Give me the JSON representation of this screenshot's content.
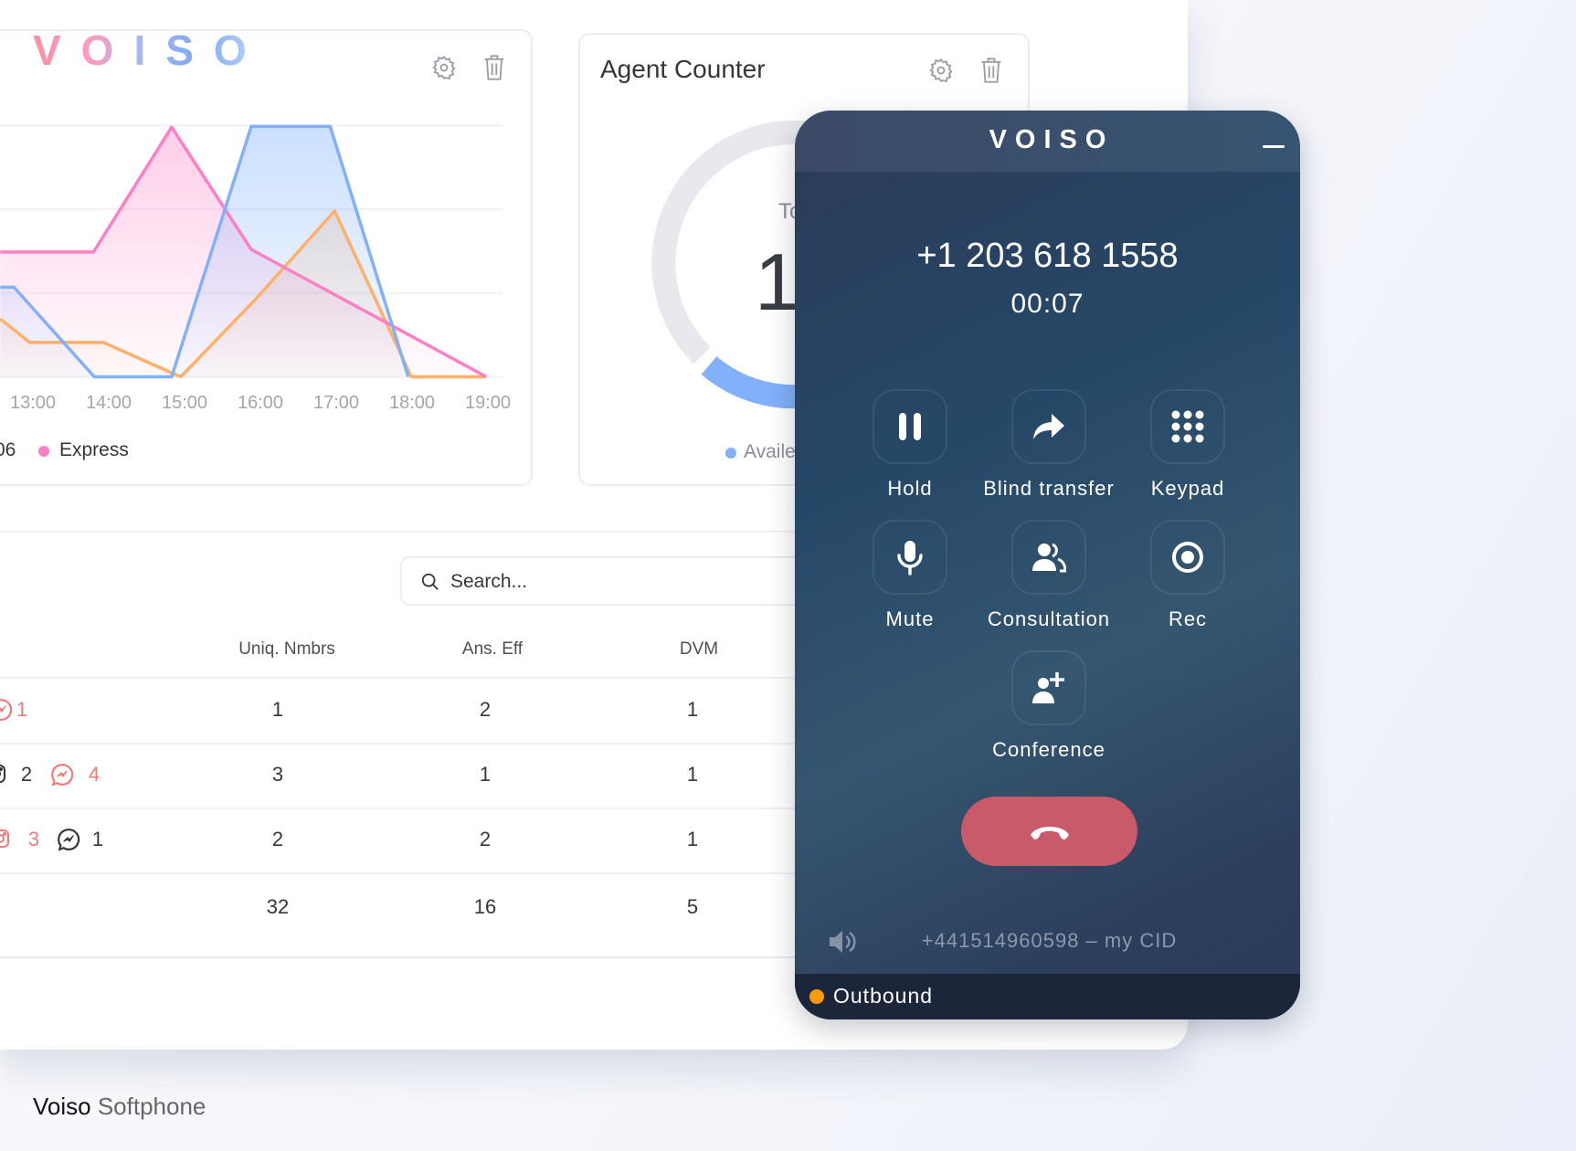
{
  "dashboard": {
    "logo": "VOISO",
    "chart_card": {
      "legend": [
        {
          "label": "06",
          "color": null
        },
        {
          "label": "Express",
          "color": "#ff7fc4"
        }
      ]
    },
    "agent_counter": {
      "title": "Agent Counter",
      "total_label": "To",
      "total_value": "1",
      "legend_label": "Availe",
      "legend_color": "#82b0fa"
    },
    "search": {
      "placeholder": "Search..."
    },
    "table": {
      "columns": [
        "Uniq. Nmbrs",
        "Ans. Eff",
        "DVM"
      ],
      "rows": [
        {
          "channels": [
            {
              "icon": "messenger-icon",
              "value": "1",
              "color": "red"
            }
          ],
          "values": [
            "1",
            "2",
            "1"
          ]
        },
        {
          "channels": [
            {
              "icon": "instagram-icon",
              "value": "2",
              "color": "dark"
            },
            {
              "icon": "messenger-icon",
              "value": "4",
              "color": "red"
            }
          ],
          "values": [
            "3",
            "1",
            "1"
          ]
        },
        {
          "channels": [
            {
              "icon": "instagram-icon",
              "value": "3",
              "color": "red"
            },
            {
              "icon": "messenger-icon",
              "value": "1",
              "color": "dark"
            }
          ],
          "values": [
            "2",
            "2",
            "1"
          ]
        }
      ],
      "totals": [
        "32",
        "16",
        "5"
      ]
    }
  },
  "chart_data": {
    "type": "area",
    "x_ticks": [
      "13:00",
      "14:00",
      "15:00",
      "16:00",
      "17:00",
      "18:00",
      "19:00"
    ],
    "ylim": [
      0,
      3
    ],
    "grid": true,
    "legend_placement": "bottom-left",
    "series": [
      {
        "name": "Express",
        "color": "#ff7fc4",
        "points": [
          [
            12.57,
            1.49
          ],
          [
            13.8,
            1.49
          ],
          [
            14.83,
            2.98
          ],
          [
            15.88,
            1.52
          ],
          [
            18.98,
            0
          ]
        ]
      },
      {
        "color": "#82b0fa",
        "points": [
          [
            12.57,
            1.07
          ],
          [
            12.75,
            1.07
          ],
          [
            13.81,
            0
          ],
          [
            14.83,
            0
          ],
          [
            15.88,
            2.99
          ],
          [
            16.92,
            2.99
          ],
          [
            17.95,
            0
          ]
        ]
      },
      {
        "color": "#ffb06a",
        "points": [
          [
            12.57,
            0.69
          ],
          [
            12.96,
            0.41
          ],
          [
            13.93,
            0.41
          ],
          [
            14.95,
            0
          ],
          [
            15.93,
            0.92
          ],
          [
            16.98,
            1.98
          ],
          [
            17.99,
            0
          ],
          [
            18.96,
            0
          ]
        ]
      }
    ]
  },
  "softphone": {
    "brand": "VOISO",
    "number": "+1 203 618 1558",
    "timer": "00:07",
    "actions": [
      {
        "label": "Hold",
        "icon": "pause-icon"
      },
      {
        "label": "Blind transfer",
        "icon": "forward-arrow-icon"
      },
      {
        "label": "Keypad",
        "icon": "keypad-icon"
      },
      {
        "label": "Mute",
        "icon": "microphone-icon"
      },
      {
        "label": "Consultation",
        "icon": "users-icon"
      },
      {
        "label": "Rec",
        "icon": "record-icon"
      },
      {
        "label": "Conference",
        "icon": "user-plus-icon"
      }
    ],
    "hangup_color": "#c95a6a",
    "caller_id": "+441514960598 – my CID",
    "status": "Outbound",
    "status_color": "#ff9a0f"
  },
  "footer": {
    "brand": "Voiso",
    "product": "Softphone"
  }
}
